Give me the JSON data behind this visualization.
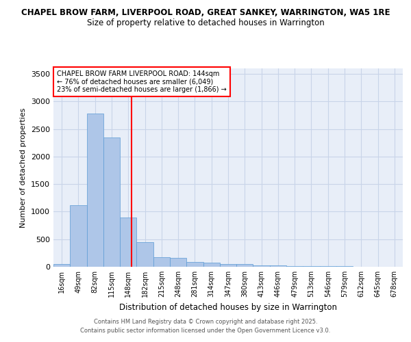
{
  "title1": "CHAPEL BROW FARM, LIVERPOOL ROAD, GREAT SANKEY, WARRINGTON, WA5 1RE",
  "title2": "Size of property relative to detached houses in Warrington",
  "xlabel": "Distribution of detached houses by size in Warrington",
  "ylabel": "Number of detached properties",
  "categories": [
    "16sqm",
    "49sqm",
    "82sqm",
    "115sqm",
    "148sqm",
    "182sqm",
    "215sqm",
    "248sqm",
    "281sqm",
    "314sqm",
    "347sqm",
    "380sqm",
    "413sqm",
    "446sqm",
    "479sqm",
    "513sqm",
    "546sqm",
    "579sqm",
    "612sqm",
    "645sqm",
    "678sqm"
  ],
  "values": [
    50,
    1120,
    2780,
    2350,
    900,
    450,
    175,
    160,
    90,
    80,
    55,
    45,
    30,
    22,
    18,
    12,
    10,
    8,
    6,
    5,
    4
  ],
  "bar_color": "#aec6e8",
  "bar_edge_color": "#5b9bd5",
  "bar_width": 1.0,
  "vline_x": 4.18,
  "vline_color": "red",
  "annotation_title": "CHAPEL BROW FARM LIVERPOOL ROAD: 144sqm",
  "annotation_line1": "← 76% of detached houses are smaller (6,049)",
  "annotation_line2": "23% of semi-detached houses are larger (1,866) →",
  "annotation_box_color": "white",
  "annotation_box_edge": "red",
  "ylim": [
    0,
    3600
  ],
  "yticks": [
    0,
    500,
    1000,
    1500,
    2000,
    2500,
    3000,
    3500
  ],
  "grid_color": "#c8d4e8",
  "bg_color": "#e8eef8",
  "footer1": "Contains HM Land Registry data © Crown copyright and database right 2025.",
  "footer2": "Contains public sector information licensed under the Open Government Licence v3.0."
}
